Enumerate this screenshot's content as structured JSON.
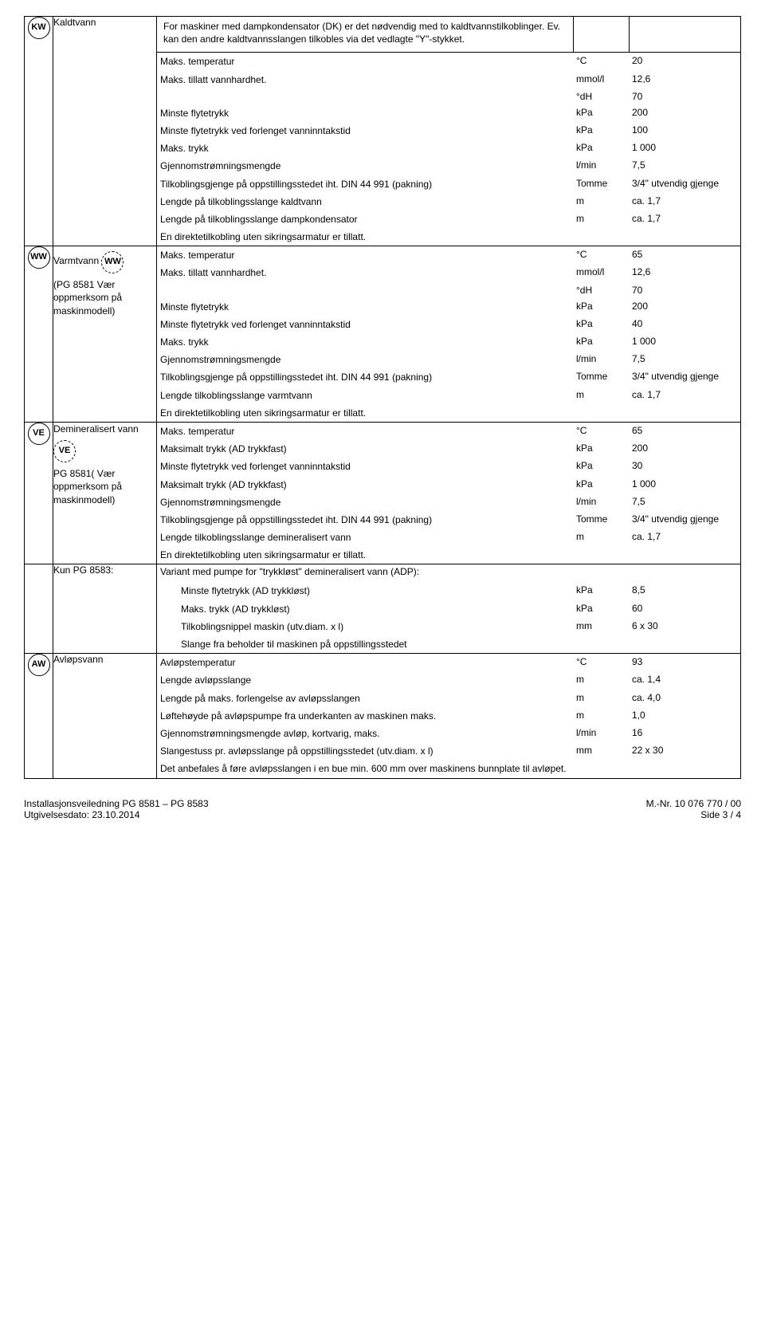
{
  "sections": {
    "kw": {
      "icon": "KW",
      "label": "Kaldtvann",
      "intro": "For maskiner med dampkondensator (DK) er det nødvendig med to kaldtvannstilkoblinger. Ev. kan den andre kaldtvannsslangen tilkobles via det vedlagte \"Y\"-stykket.",
      "rows": [
        {
          "desc": "Maks. temperatur",
          "unit": "°C",
          "val": "20"
        },
        {
          "desc": "Maks. tillatt vannhardhet.",
          "unit": "mmol/l",
          "val": "12,6"
        },
        {
          "desc": "",
          "unit": "°dH",
          "val": "70"
        },
        {
          "desc": "Minste flytetrykk",
          "unit": "kPa",
          "val": "200"
        },
        {
          "desc": "Minste flytetrykk ved forlenget vanninntakstid",
          "unit": "kPa",
          "val": "100"
        },
        {
          "desc": "Maks. trykk",
          "unit": "kPa",
          "val": "1 000"
        },
        {
          "desc": "Gjennomstrømningsmengde",
          "unit": "l/min",
          "val": "7,5"
        },
        {
          "desc": "Tilkoblingsgjenge på oppstillingsstedet iht. DIN 44 991 (pakning)",
          "unit": "Tomme",
          "val": "3/4\" utvendig gjenge"
        },
        {
          "desc": "Lengde på tilkoblingsslange kaldtvann",
          "unit": "m",
          "val": "ca. 1,7"
        },
        {
          "desc": "Lengde på tilkoblingsslange dampkondensator",
          "unit": "m",
          "val": "ca. 1,7"
        },
        {
          "desc": "En direktetilkobling uten sikringsarmatur er tillatt.",
          "unit": "",
          "val": ""
        }
      ]
    },
    "ww": {
      "icon": "WW",
      "label": "Varmtvann",
      "subicon": "WW",
      "sublabel": "(PG 8581 Vær oppmerksom på maskinmodell)",
      "rows": [
        {
          "desc": "Maks. temperatur",
          "unit": "°C",
          "val": "65"
        },
        {
          "desc": "Maks. tillatt vannhardhet.",
          "unit": "mmol/l",
          "val": "12,6"
        },
        {
          "desc": "",
          "unit": "°dH",
          "val": "70"
        },
        {
          "desc": "Minste flytetrykk",
          "unit": "kPa",
          "val": "200"
        },
        {
          "desc": "Minste flytetrykk ved forlenget vanninntakstid",
          "unit": "kPa",
          "val": "40"
        },
        {
          "desc": "Maks. trykk",
          "unit": "kPa",
          "val": "1 000"
        },
        {
          "desc": "Gjennomstrømningsmengde",
          "unit": "l/min",
          "val": "7,5"
        },
        {
          "desc": "Tilkoblingsgjenge på oppstillingsstedet iht. DIN 44 991 (pakning)",
          "unit": "Tomme",
          "val": "3/4\" utvendig gjenge"
        },
        {
          "desc": "Lengde tilkoblingsslange varmtvann",
          "unit": "m",
          "val": "ca. 1,7"
        },
        {
          "desc": "En direktetilkobling uten sikringsarmatur er tillatt.",
          "unit": "",
          "val": ""
        }
      ]
    },
    "ve": {
      "icon": "VE",
      "label": "Demineralisert vann",
      "subicon": "VE",
      "sublabel": "PG 8581( Vær oppmerksom på maskinmodell)",
      "rows": [
        {
          "desc": "Maks. temperatur",
          "unit": "°C",
          "val": "65"
        },
        {
          "desc": "Maksimalt trykk (AD trykkfast)",
          "unit": "kPa",
          "val": "200"
        },
        {
          "desc": "Minste flytetrykk ved forlenget vanninntakstid",
          "unit": "kPa",
          "val": "30"
        },
        {
          "desc": "Maksimalt trykk (AD trykkfast)",
          "unit": "kPa",
          "val": "1 000"
        },
        {
          "desc": "Gjennomstrømningsmengde",
          "unit": "l/min",
          "val": "7,5"
        },
        {
          "desc": "Tilkoblingsgjenge på oppstillingsstedet iht. DIN 44 991 (pakning)",
          "unit": "Tomme",
          "val": "3/4\" utvendig gjenge"
        },
        {
          "desc": "Lengde tilkoblingsslange demineralisert vann",
          "unit": "m",
          "val": "ca. 1,7"
        },
        {
          "desc": "En direktetilkobling uten sikringsarmatur er tillatt.",
          "unit": "",
          "val": ""
        }
      ]
    },
    "adp": {
      "label": "Kun PG 8583:",
      "heading": "Variant med pumpe for \"trykkløst\" demineralisert vann (ADP):",
      "rows": [
        {
          "desc": "Minste flytetrykk (AD trykkløst)",
          "unit": "kPa",
          "val": "8,5"
        },
        {
          "desc": "Maks. trykk (AD trykkløst)",
          "unit": "kPa",
          "val": "60"
        },
        {
          "desc": "Tilkoblingsnippel maskin (utv.diam. x l)",
          "unit": "mm",
          "val": "6 x 30"
        },
        {
          "desc": "Slange fra beholder til maskinen på oppstillingsstedet",
          "unit": "",
          "val": ""
        }
      ]
    },
    "aw": {
      "icon": "AW",
      "label": "Avløpsvann",
      "rows": [
        {
          "desc": "Avløpstemperatur",
          "unit": "°C",
          "val": "93"
        },
        {
          "desc": "Lengde avløpsslange",
          "unit": "m",
          "val": "ca. 1,4"
        },
        {
          "desc": "Lengde på maks. forlengelse av avløpsslangen",
          "unit": "m",
          "val": "ca. 4,0"
        },
        {
          "desc": "Løftehøyde på avløpspumpe fra underkanten av maskinen maks.",
          "unit": "m",
          "val": "1,0"
        },
        {
          "desc": "Gjennomstrømningsmengde avløp, kortvarig, maks.",
          "unit": "l/min",
          "val": "16"
        },
        {
          "desc": "Slangestuss pr. avløpsslange på oppstillingsstedet (utv.diam. x l)",
          "unit": "mm",
          "val": "22 x 30"
        },
        {
          "desc": "Det anbefales å føre avløpsslangen i en bue min. 600 mm over maskinens bunnplate til avløpet.",
          "unit": "",
          "val": ""
        }
      ]
    }
  },
  "footer": {
    "left1": "Installasjonsveiledning PG 8581 – PG 8583",
    "left2": "Utgivelsesdato: 23.10.2014",
    "right1": "M.-Nr. 10 076 770 / 00",
    "right2": "Side 3 / 4"
  }
}
